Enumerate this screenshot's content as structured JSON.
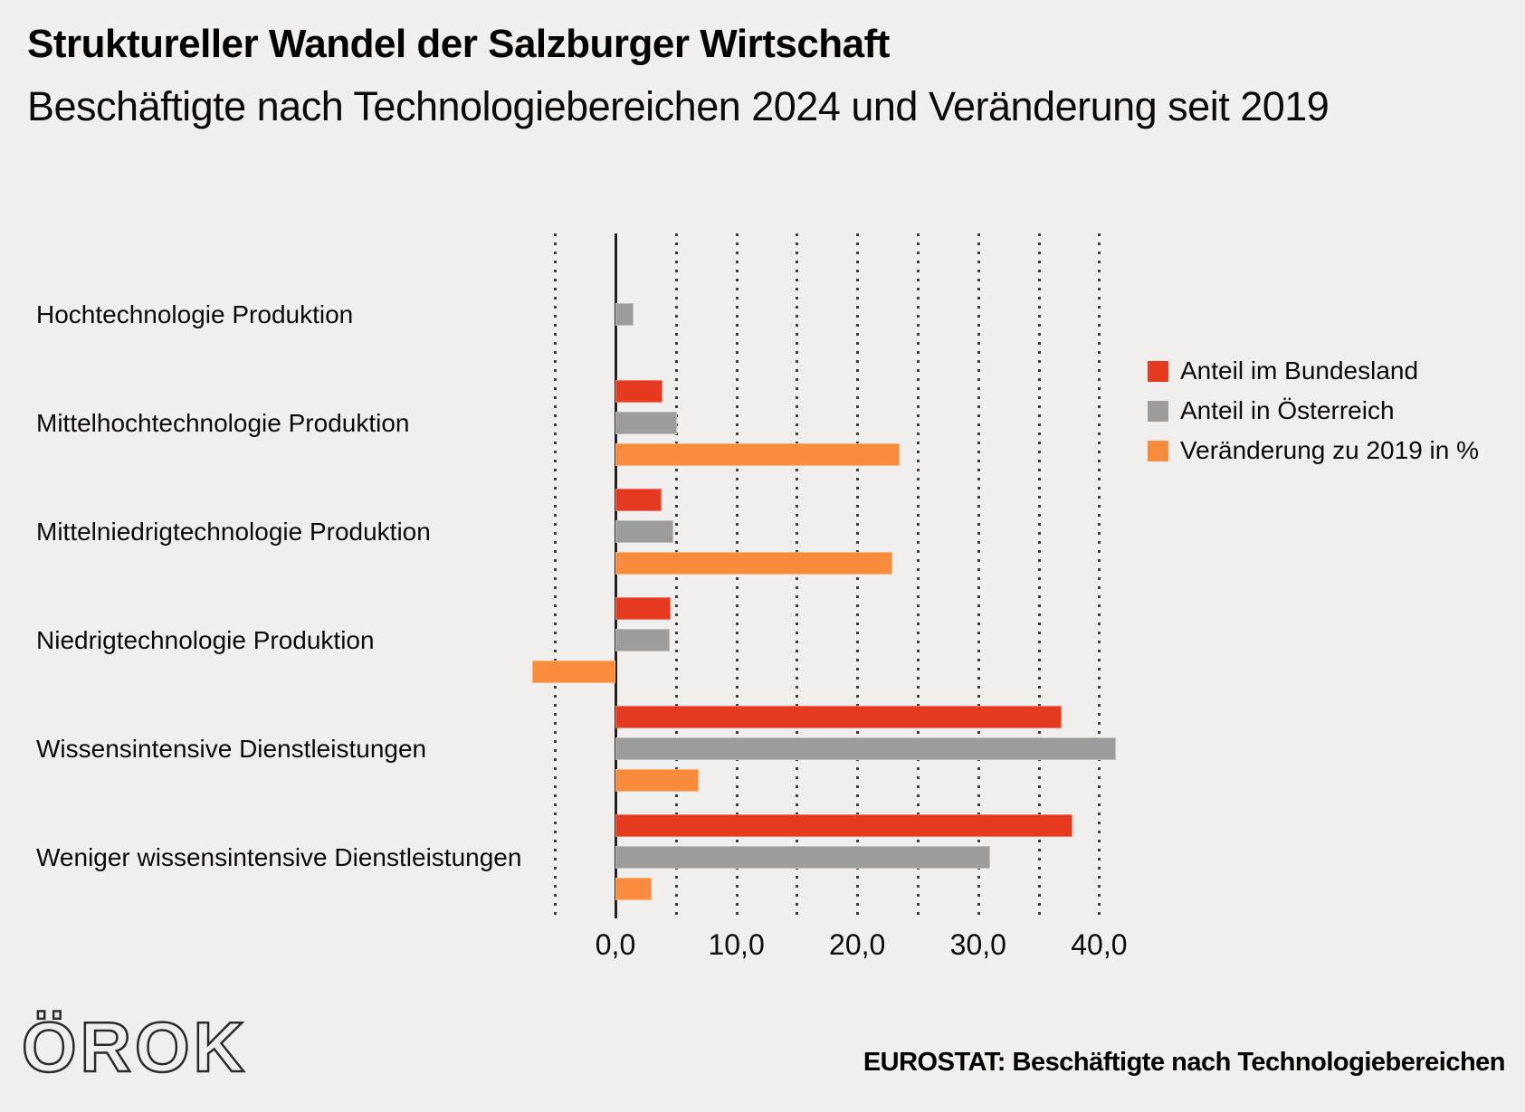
{
  "header": {
    "title": "Struktureller Wandel der Salzburger Wirtschaft",
    "subtitle": "Beschäftigte nach Technologiebereichen 2024 und Veränderung seit 2019"
  },
  "chart_data": {
    "type": "bar",
    "orientation": "horizontal",
    "title": "Struktureller Wandel der Salzburger Wirtschaft",
    "subtitle": "Beschäftigte nach Technologiebereichen 2024 und Veränderung seit 2019",
    "unit": "%",
    "categories": [
      "Hochtechnologie Produktion",
      "Mittelhochtechnologie Produktion",
      "Mittelniedrigtechnologie Produktion",
      "Niedrigtechnologie Produktion",
      "Wissensintensive Dienstleistungen",
      "Weniger wissensintensive Dienstleistungen"
    ],
    "series": [
      {
        "name": "Anteil im Bundesland",
        "color": "#E63A20",
        "values": [
          0.0,
          3.9,
          3.8,
          4.6,
          36.9,
          37.8
        ]
      },
      {
        "name": "Anteil in Österreich",
        "color": "#9C9C9C",
        "values": [
          1.5,
          5.1,
          4.8,
          4.5,
          41.4,
          31.0
        ]
      },
      {
        "name": "Veränderung zu 2019 in %",
        "color": "#F98B3D",
        "values": [
          0.0,
          23.5,
          22.9,
          -6.9,
          6.9,
          3.0
        ]
      }
    ],
    "x_axis": {
      "tick_labels": [
        "0,0",
        "10,0",
        "20,0",
        "30,0",
        "40,0"
      ],
      "tick_values": [
        0,
        10,
        20,
        30,
        40
      ],
      "range": [
        -10.5,
        42.5
      ],
      "gridline_values": [
        -5,
        5,
        10,
        15,
        20,
        25,
        30,
        35,
        40
      ],
      "grid_style": "dotted"
    },
    "legend_position": "right"
  },
  "footer": {
    "logo_text": "ÖROK",
    "source": "EUROSTAT: Beschäftigte nach Technologiebereichen"
  }
}
